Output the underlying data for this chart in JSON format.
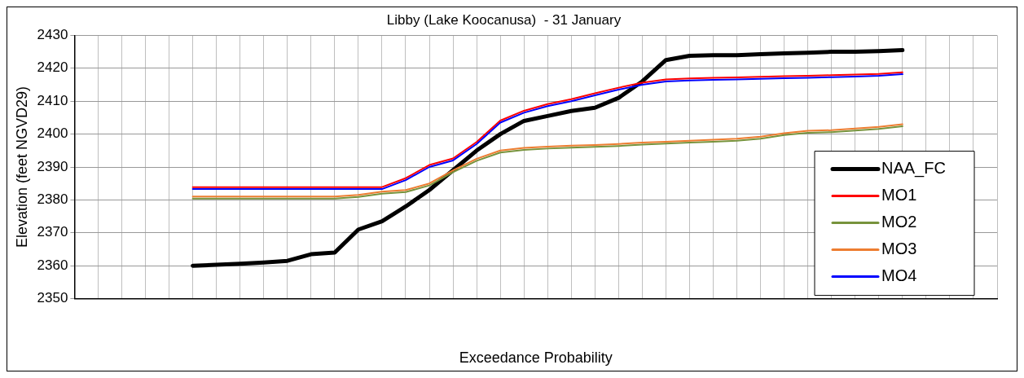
{
  "chart_data": {
    "type": "line",
    "title": "Libby (Lake Koocanusa)  - 31 January",
    "xlabel": "Exceedance Probability",
    "ylabel": "Elevation (feet NGVD29)",
    "categories": [
      null,
      null,
      null,
      null,
      null,
      null,
      null,
      null,
      null,
      null,
      null,
      null,
      null,
      null,
      null,
      null,
      null,
      null,
      null,
      null,
      null,
      null,
      null,
      null,
      null,
      null,
      null,
      null,
      null,
      null,
      null,
      null,
      null,
      null,
      null,
      null,
      null,
      null,
      null,
      null
    ],
    "ylim": [
      2350,
      2430
    ],
    "yticks": [
      2350,
      2360,
      2370,
      2380,
      2390,
      2400,
      2410,
      2420,
      2430
    ],
    "grid": true,
    "legend": "bottom right",
    "marker": "none",
    "line_style": "solid",
    "series": [
      {
        "name": "NAA_FC",
        "color": "#000000",
        "values": [
          null,
          null,
          null,
          null,
          null,
          2360,
          2360.3,
          2360.6,
          2361,
          2361.5,
          2363.5,
          2364,
          2371,
          2373.5,
          2378,
          2383,
          2389,
          2395,
          2400,
          2404,
          2405.5,
          2407,
          2408,
          2411,
          2416,
          2422.5,
          2423.8,
          2424,
          2424,
          2424.3,
          2424.5,
          2424.7,
          2425,
          2425,
          2425.2,
          2425.5,
          null,
          null,
          null,
          null
        ]
      },
      {
        "name": "MO1",
        "color": "#ff0000",
        "values": [
          null,
          null,
          null,
          null,
          null,
          2383.9,
          2383.9,
          2383.9,
          2383.9,
          2383.9,
          2383.9,
          2383.9,
          2383.9,
          2383.9,
          2386.6,
          2390.6,
          2392.6,
          2397.6,
          2404.1,
          2407.1,
          2409.1,
          2410.6,
          2412.4,
          2414.1,
          2415.6,
          2416.6,
          2416.9,
          2417.1,
          2417.2,
          2417.4,
          2417.6,
          2417.7,
          2417.9,
          2418.1,
          2418.3,
          2418.8,
          null,
          null,
          null,
          null
        ]
      },
      {
        "name": "MO2",
        "color": "#77933c",
        "values": [
          null,
          null,
          null,
          null,
          null,
          2380.4,
          2380.4,
          2380.4,
          2380.4,
          2380.4,
          2380.4,
          2380.4,
          2380.9,
          2381.9,
          2382.4,
          2384.4,
          2388.4,
          2391.9,
          2394.4,
          2395.2,
          2395.6,
          2395.9,
          2396.1,
          2396.4,
          2396.8,
          2397.1,
          2397.4,
          2397.7,
          2398,
          2398.6,
          2399.7,
          2400.4,
          2400.6,
          2401.1,
          2401.6,
          2402.4,
          null,
          null,
          null,
          null
        ]
      },
      {
        "name": "MO3",
        "color": "#ed7d31",
        "values": [
          null,
          null,
          null,
          null,
          null,
          2381,
          2381,
          2381,
          2381,
          2381,
          2381,
          2381,
          2381.5,
          2382.5,
          2383,
          2385,
          2389,
          2392.5,
          2395,
          2395.8,
          2396.2,
          2396.5,
          2396.7,
          2397,
          2397.4,
          2397.7,
          2398,
          2398.3,
          2398.6,
          2399.2,
          2400.3,
          2401,
          2401.2,
          2401.7,
          2402.2,
          2403,
          null,
          null,
          null,
          null
        ]
      },
      {
        "name": "MO4",
        "color": "#0000ff",
        "values": [
          null,
          null,
          null,
          null,
          null,
          2383.3,
          2383.3,
          2383.3,
          2383.3,
          2383.3,
          2383.3,
          2383.3,
          2383.3,
          2383.3,
          2386,
          2390,
          2392,
          2397,
          2403.5,
          2406.5,
          2408.5,
          2410,
          2411.8,
          2413.5,
          2415,
          2416,
          2416.3,
          2416.5,
          2416.6,
          2416.8,
          2417,
          2417.1,
          2417.3,
          2417.5,
          2417.7,
          2418.2,
          null,
          null,
          null,
          null
        ]
      }
    ]
  }
}
